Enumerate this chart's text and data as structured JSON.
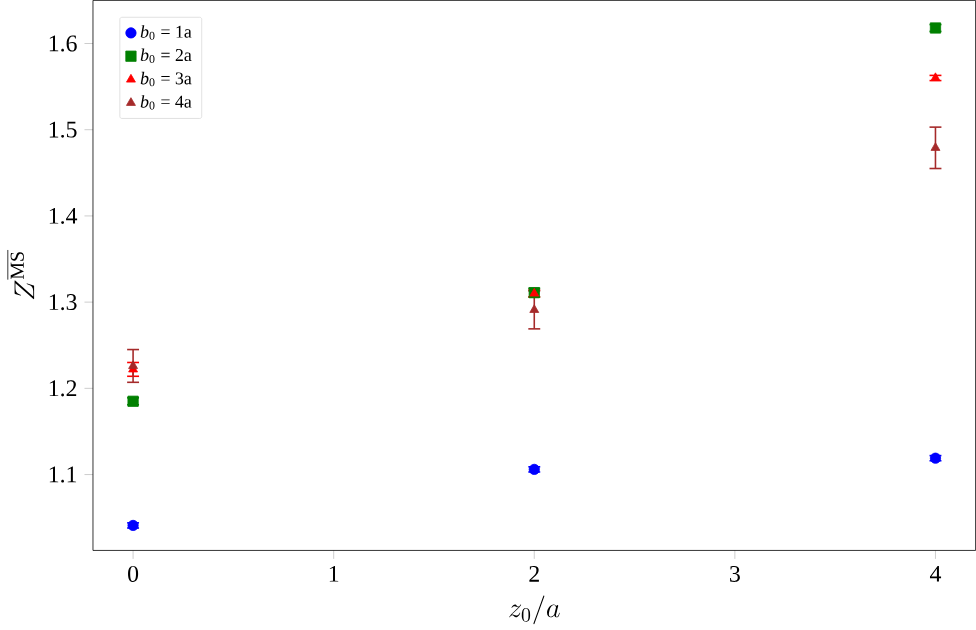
{
  "chart_data": {
    "type": "scatter",
    "xlabel": "z_0/a",
    "ylabel": "Z^{\\overline{\\mathrm{MS}}}",
    "x": [
      0,
      2,
      4
    ],
    "xlim": [
      -0.2,
      4.2
    ],
    "xticks": [
      0,
      1,
      2,
      3,
      4
    ],
    "ylim": [
      1.012,
      1.65
    ],
    "yticks": [
      1.1,
      1.2,
      1.3,
      1.4,
      1.5,
      1.6
    ],
    "legend": "top left",
    "grid": false,
    "series": [
      {
        "name": "*b*$_{0}$ = 1a",
        "color": "#0000ff",
        "marker": "circle",
        "values": [
          1.041,
          1.106,
          1.119
        ],
        "errors": [
          0.003,
          0.003,
          0.003
        ]
      },
      {
        "name": "*b*$_{0}$ = 2a",
        "color": "#008000",
        "marker": "square",
        "values": [
          1.185,
          1.311,
          1.618
        ],
        "errors": [
          0.004,
          0.005,
          0.004
        ]
      },
      {
        "name": "*b*$_{0}$ = 3a",
        "color": "#ff0000",
        "marker": "triangle",
        "values": [
          1.222,
          1.31,
          1.56
        ],
        "errors": [
          0.008,
          0.004,
          0.003
        ]
      },
      {
        "name": "*b*$_{0}$ = 4a",
        "color": "#a52a2a",
        "marker": "triangle",
        "values": [
          1.226,
          1.291,
          1.479
        ],
        "errors": [
          0.019,
          0.022,
          0.024
        ]
      }
    ]
  }
}
